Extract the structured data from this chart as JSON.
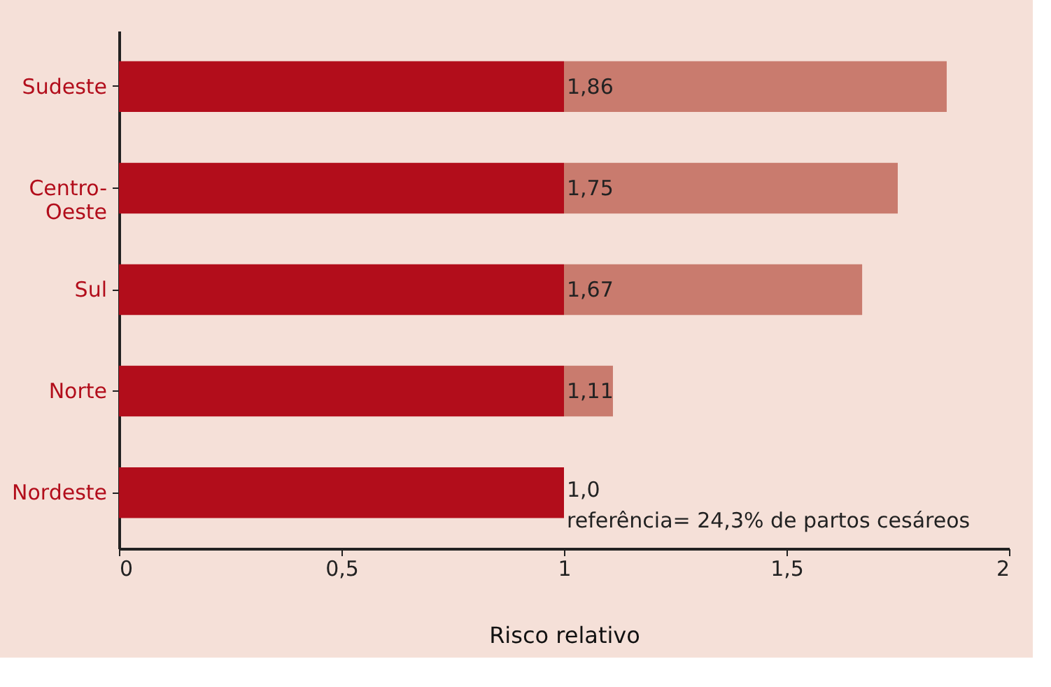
{
  "chart_data": {
    "type": "bar",
    "orientation": "horizontal",
    "stacked": true,
    "categories": [
      "Sudeste",
      "Centro-Oeste",
      "Sul",
      "Norte",
      "Nordeste"
    ],
    "series": [
      {
        "color": "#b20d1b",
        "values": [
          1,
          1,
          1,
          1,
          1
        ]
      },
      {
        "color": "#c97b6e",
        "values": [
          0.86,
          0.75,
          0.67,
          0.11,
          0
        ]
      }
    ],
    "totals": [
      "1,86",
      "1,75",
      "1,67",
      "1,11",
      "1,0"
    ],
    "annotations": [
      {
        "text": "referência= 24,3% de partos cesáreos",
        "x": 1,
        "y": "Nordeste"
      }
    ],
    "xlabel": "Risco relativo",
    "xlim": [
      0,
      2
    ],
    "xticks": [
      0,
      {
        "value": 0.5,
        "label": "0,5"
      },
      1,
      {
        "value": 1.5,
        "label": "1,5"
      },
      2
    ],
    "grid": false
  }
}
